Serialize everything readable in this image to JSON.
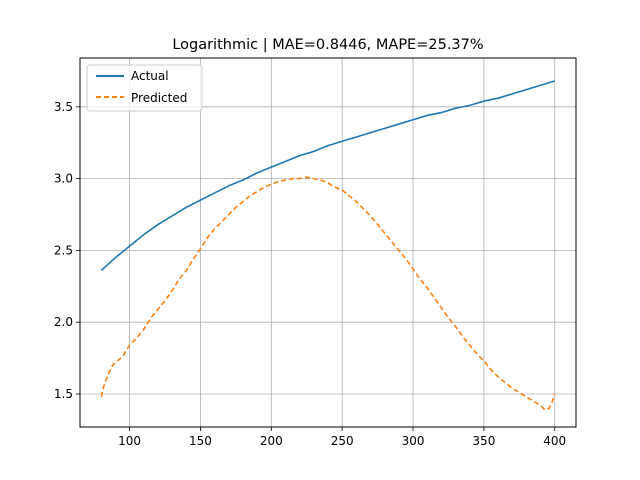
{
  "chart_data": {
    "type": "line",
    "title": "Logarithmic | MAE=0.8446, MAPE=25.37%",
    "xlabel": "",
    "ylabel": "",
    "xlim": [
      65,
      415
    ],
    "ylim": [
      1.27,
      3.84
    ],
    "xticks": [
      100,
      150,
      200,
      250,
      300,
      350,
      400
    ],
    "yticks": [
      1.5,
      2.0,
      2.5,
      3.0,
      3.5
    ],
    "xtick_labels": [
      "100",
      "150",
      "200",
      "250",
      "300",
      "350",
      "400"
    ],
    "ytick_labels": [
      "1.5",
      "2.0",
      "2.5",
      "3.0",
      "3.5"
    ],
    "grid": true,
    "legend_position": "top-left",
    "series": [
      {
        "name": "Actual",
        "style": "solid",
        "color": "#1f77b4",
        "x": [
          80,
          90,
          100,
          110,
          120,
          130,
          140,
          150,
          160,
          170,
          180,
          190,
          200,
          210,
          220,
          230,
          240,
          250,
          260,
          270,
          280,
          290,
          300,
          310,
          320,
          330,
          340,
          350,
          360,
          370,
          380,
          390,
          400
        ],
        "y": [
          2.36,
          2.45,
          2.53,
          2.61,
          2.68,
          2.74,
          2.8,
          2.85,
          2.9,
          2.95,
          2.99,
          3.04,
          3.08,
          3.12,
          3.16,
          3.19,
          3.23,
          3.26,
          3.29,
          3.32,
          3.35,
          3.38,
          3.41,
          3.44,
          3.46,
          3.49,
          3.51,
          3.54,
          3.56,
          3.59,
          3.62,
          3.65,
          3.68
        ]
      },
      {
        "name": "Predicted",
        "style": "dashed",
        "color": "#ff7f0e",
        "x": [
          80,
          82,
          85,
          88,
          90,
          95,
          100,
          105,
          110,
          115,
          120,
          125,
          130,
          135,
          140,
          145,
          150,
          155,
          160,
          165,
          170,
          175,
          180,
          185,
          190,
          195,
          200,
          205,
          210,
          215,
          220,
          225,
          230,
          235,
          240,
          245,
          250,
          255,
          260,
          265,
          270,
          275,
          280,
          285,
          290,
          295,
          300,
          305,
          310,
          315,
          320,
          325,
          330,
          335,
          340,
          345,
          350,
          355,
          360,
          365,
          370,
          375,
          380,
          385,
          390,
          393,
          396,
          398,
          400
        ],
        "y": [
          1.48,
          1.56,
          1.64,
          1.7,
          1.72,
          1.76,
          1.84,
          1.89,
          1.95,
          2.03,
          2.09,
          2.15,
          2.22,
          2.3,
          2.36,
          2.44,
          2.51,
          2.59,
          2.65,
          2.7,
          2.75,
          2.8,
          2.84,
          2.88,
          2.91,
          2.94,
          2.96,
          2.98,
          2.99,
          3.0,
          3.0,
          3.01,
          3.0,
          2.99,
          2.97,
          2.94,
          2.92,
          2.88,
          2.84,
          2.79,
          2.74,
          2.68,
          2.62,
          2.56,
          2.5,
          2.44,
          2.37,
          2.3,
          2.24,
          2.17,
          2.1,
          2.03,
          1.97,
          1.9,
          1.84,
          1.78,
          1.73,
          1.67,
          1.62,
          1.58,
          1.54,
          1.51,
          1.48,
          1.45,
          1.42,
          1.39,
          1.4,
          1.44,
          1.5
        ]
      }
    ]
  }
}
